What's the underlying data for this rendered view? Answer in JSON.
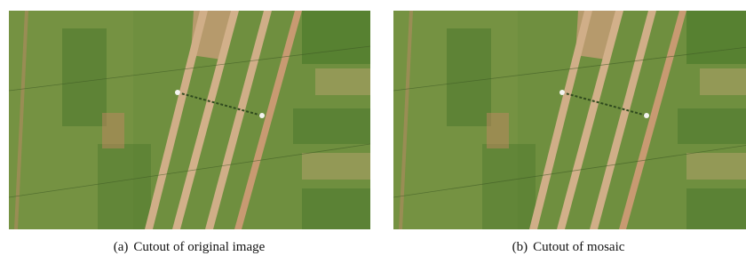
{
  "figure": {
    "panels": [
      {
        "label": "(a)",
        "text": "Cutout of original image"
      },
      {
        "label": "(b)",
        "text": "Cutout of mosaic"
      }
    ]
  }
}
